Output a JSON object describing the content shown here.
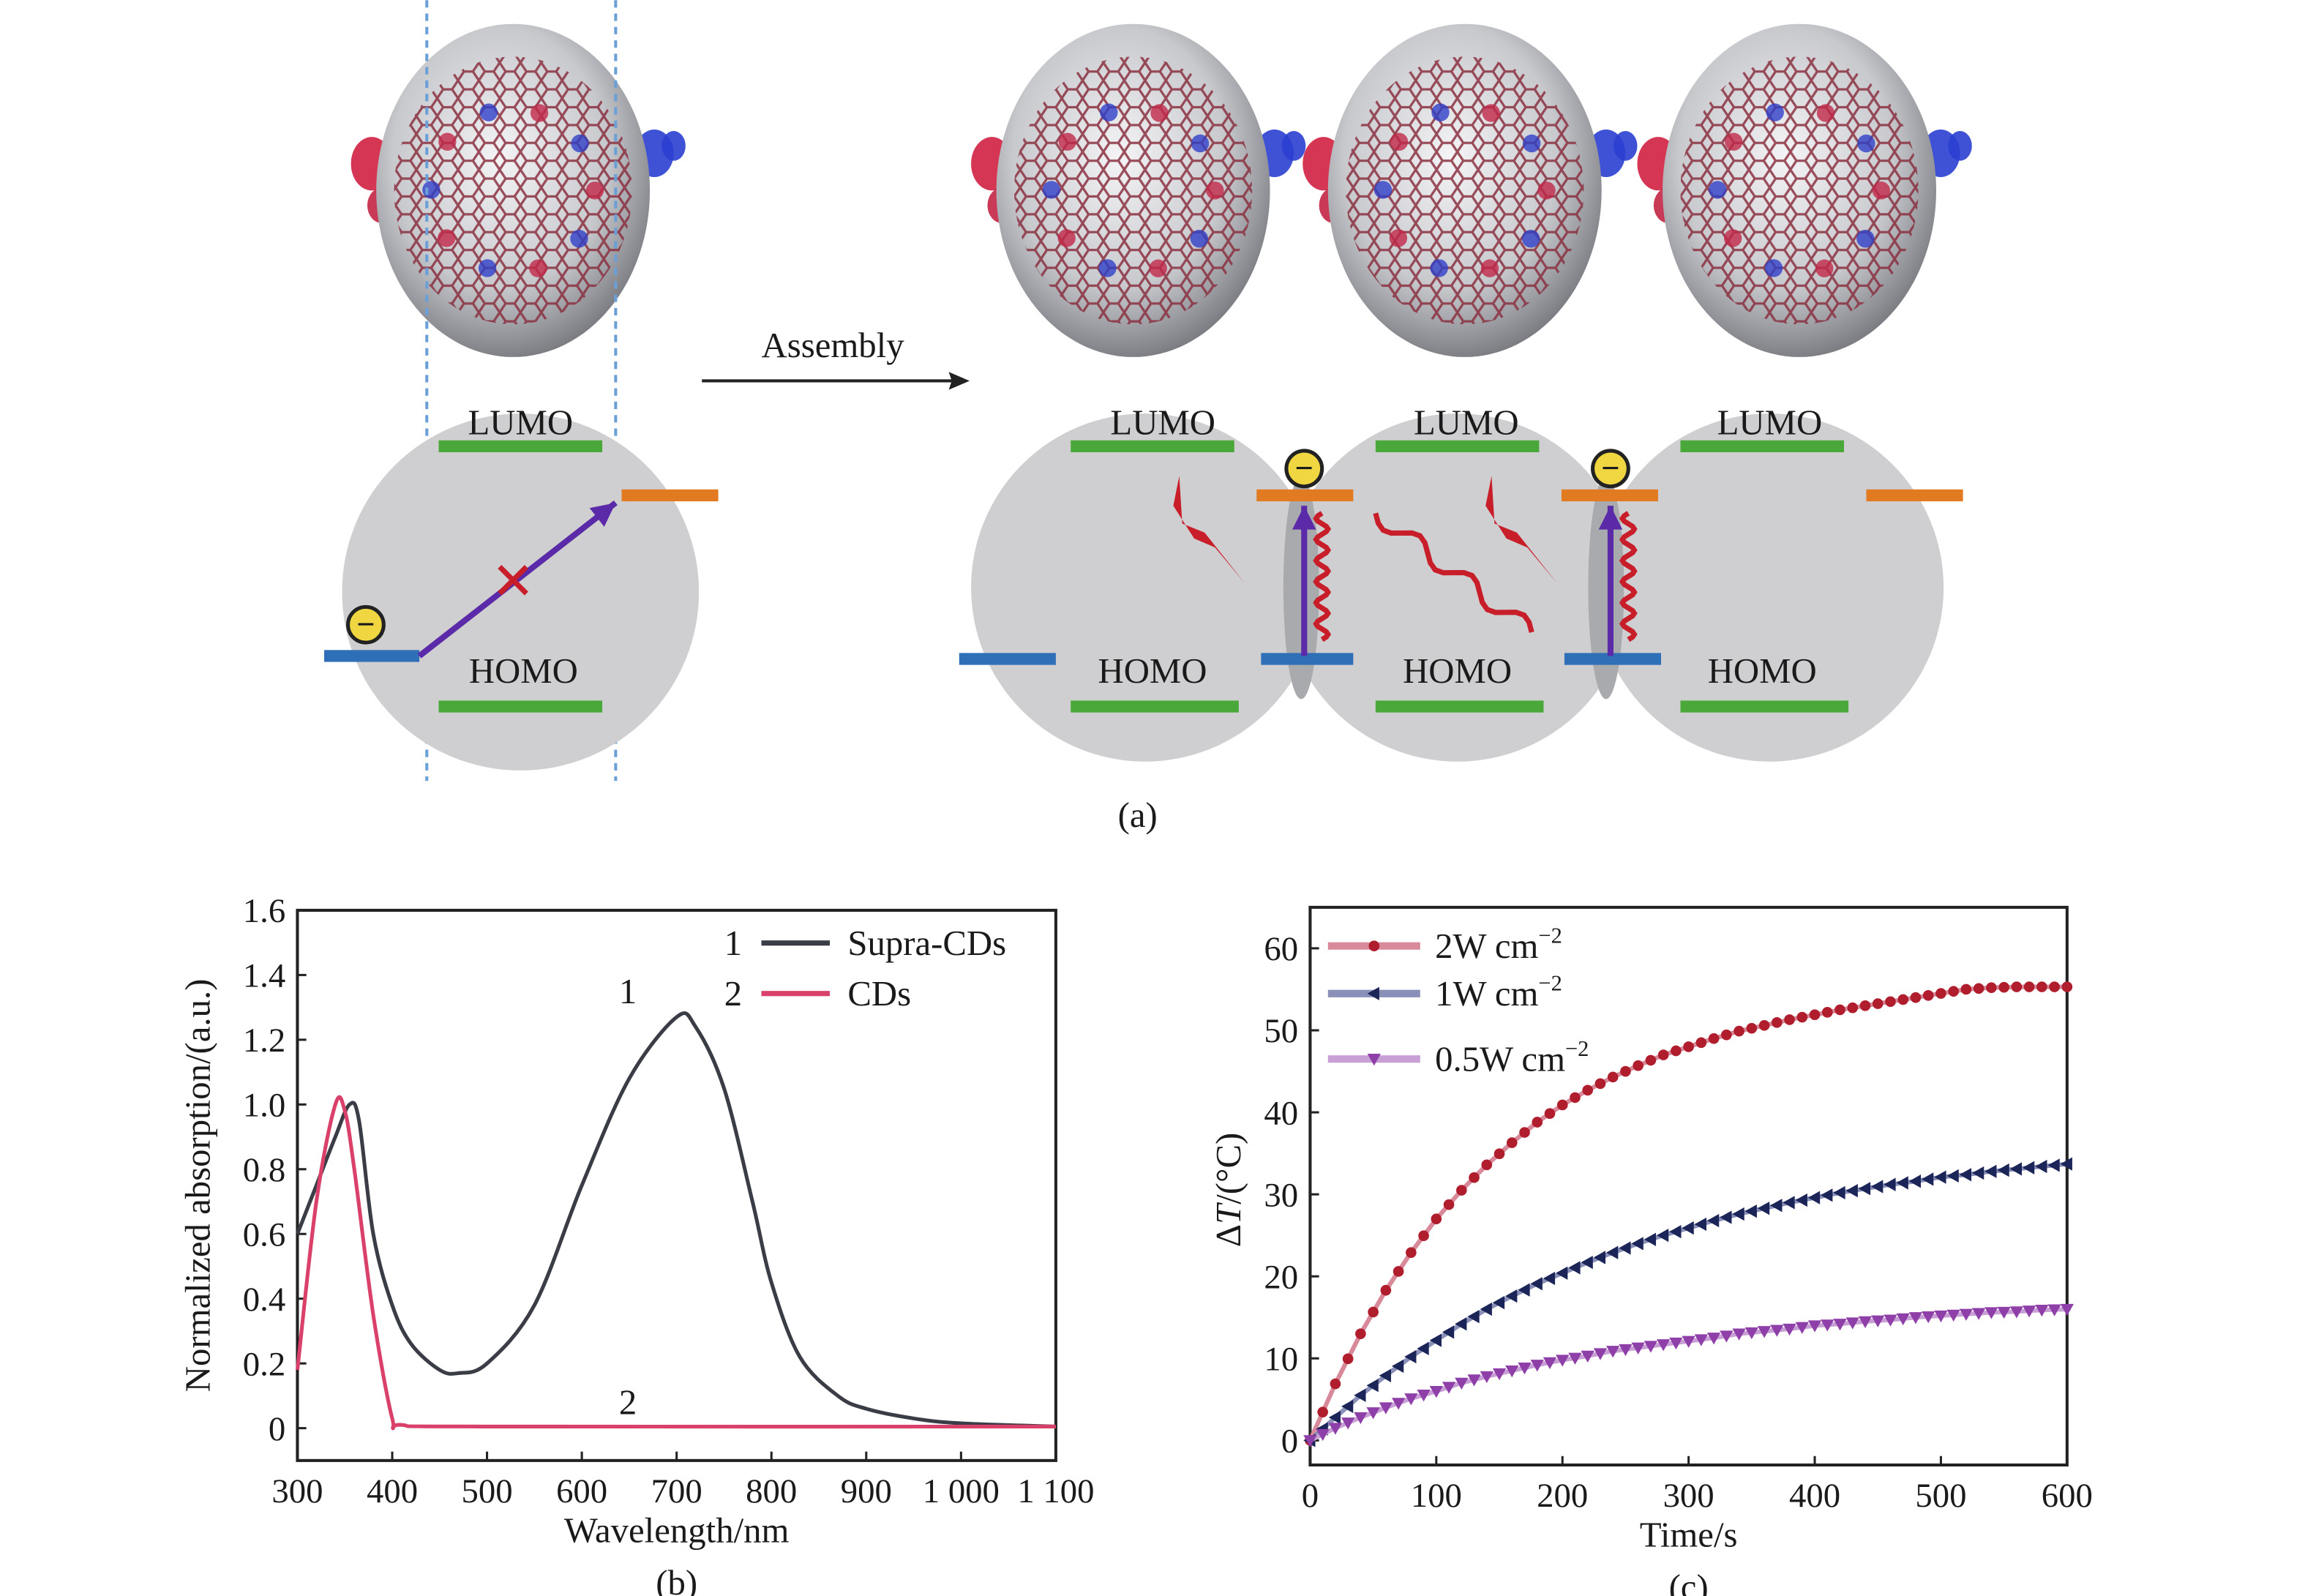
{
  "panel_a": {
    "label": "(a)",
    "arrow_label": "Assembly",
    "lumo": "LUMO",
    "homo": "HOMO",
    "electron_sign": "−",
    "colors": {
      "lumo_homo": "#4aa83a",
      "donor": "#2f6fb8",
      "acceptor": "#e27a22",
      "excitation": "#5a2aa8",
      "heat": "#c81e2a",
      "electron": "#f0d640",
      "guide": "#6a9fd8"
    }
  },
  "chart_data": [
    {
      "type": "line",
      "panel_label": "(b)",
      "xlabel": "Wavelength/nm",
      "ylabel": "Normalized absorption/(a.u.)",
      "xlim": [
        300,
        1100
      ],
      "ylim": [
        -0.1,
        1.6
      ],
      "xticks": [
        300,
        400,
        500,
        600,
        700,
        800,
        900,
        1000,
        1100
      ],
      "xtick_labels": [
        "300",
        "400",
        "500",
        "600",
        "700",
        "800",
        "900",
        "1 000",
        "1 100"
      ],
      "yticks": [
        0,
        0.2,
        0.4,
        0.6,
        0.8,
        1.0,
        1.2,
        1.4,
        1.6
      ],
      "ytick_labels": [
        "0",
        "0.2",
        "0.4",
        "0.6",
        "0.8",
        "1.0",
        "1.2",
        "1.4",
        "1.6"
      ],
      "grid": false,
      "legend": "top-right",
      "series": [
        {
          "name": "Supra-CDs",
          "legend_num": "1",
          "color": "#3a3d45",
          "x": [
            300,
            320,
            340,
            355,
            365,
            380,
            400,
            420,
            450,
            470,
            500,
            550,
            600,
            650,
            700,
            720,
            750,
            780,
            800,
            830,
            870,
            900,
            950,
            1000,
            1100
          ],
          "y": [
            0.6,
            0.75,
            0.9,
            1.0,
            0.95,
            0.6,
            0.38,
            0.26,
            0.18,
            0.17,
            0.2,
            0.38,
            0.75,
            1.08,
            1.27,
            1.24,
            1.05,
            0.7,
            0.45,
            0.22,
            0.1,
            0.06,
            0.03,
            0.015,
            0.005
          ]
        },
        {
          "name": "CDs",
          "legend_num": "2",
          "color": "#d9406a",
          "x": [
            300,
            320,
            340,
            350,
            360,
            380,
            400,
            410,
            500,
            1100
          ],
          "y": [
            0.18,
            0.7,
            1.0,
            0.98,
            0.8,
            0.35,
            0.03,
            0.01,
            0.005,
            0.005
          ]
        }
      ],
      "annotations": [
        {
          "text": "1",
          "x": 680,
          "y": 1.35
        },
        {
          "text": "2",
          "x": 680,
          "y": 0.08
        }
      ]
    },
    {
      "type": "line",
      "panel_label": "(c)",
      "xlabel": "Time/s",
      "ylabel_prefix": "Δ",
      "ylabel_var": "T",
      "ylabel_suffix": "/(°C)",
      "xlim": [
        0,
        600
      ],
      "ylim": [
        -3,
        65
      ],
      "xticks": [
        0,
        100,
        200,
        300,
        400,
        500,
        600
      ],
      "yticks": [
        0,
        10,
        20,
        30,
        40,
        50,
        60
      ],
      "grid": false,
      "legend": "top-left",
      "x": [
        0,
        20,
        40,
        60,
        80,
        100,
        120,
        140,
        160,
        180,
        200,
        220,
        240,
        260,
        280,
        300,
        320,
        340,
        360,
        380,
        400,
        420,
        440,
        460,
        480,
        500,
        520,
        540,
        560,
        580,
        600
      ],
      "series": [
        {
          "name_main": "2W cm",
          "name_sup": "−2",
          "color": "#b01e2e",
          "line": "#d98a9a",
          "marker": "circle",
          "y": [
            0,
            6.9,
            13.0,
            18.3,
            22.9,
            27.0,
            30.5,
            33.6,
            36.3,
            38.8,
            40.9,
            42.7,
            44.3,
            45.7,
            47.0,
            48.0,
            49.0,
            49.9,
            50.6,
            51.3,
            51.9,
            52.5,
            53.0,
            53.5,
            54.0,
            54.5,
            55.0,
            55.2,
            55.3,
            55.3,
            55.3
          ]
        },
        {
          "name_main": "1W cm",
          "name_sup": "−2",
          "color": "#1c2558",
          "line": "#8a90b8",
          "marker": "triangle-left",
          "y": [
            0,
            2.8,
            5.5,
            7.9,
            10.2,
            12.2,
            14.2,
            16.0,
            17.6,
            19.1,
            20.4,
            21.7,
            22.9,
            24.0,
            25.0,
            25.9,
            26.8,
            27.6,
            28.3,
            29.0,
            29.6,
            30.2,
            30.7,
            31.2,
            31.6,
            32.1,
            32.4,
            32.8,
            33.1,
            33.4,
            33.7
          ]
        },
        {
          "name_main": "0.5W cm",
          "name_sup": "−2",
          "color": "#8e3fa8",
          "line": "#c9a0d6",
          "marker": "triangle-down",
          "y": [
            0,
            1.5,
            2.8,
            4.0,
            5.1,
            6.0,
            7.0,
            7.8,
            8.5,
            9.2,
            9.8,
            10.3,
            10.9,
            11.3,
            11.7,
            12.1,
            12.5,
            13.0,
            13.3,
            13.6,
            14.0,
            14.2,
            14.5,
            14.7,
            15.0,
            15.2,
            15.4,
            15.6,
            15.7,
            15.9,
            16.0
          ]
        }
      ]
    }
  ]
}
